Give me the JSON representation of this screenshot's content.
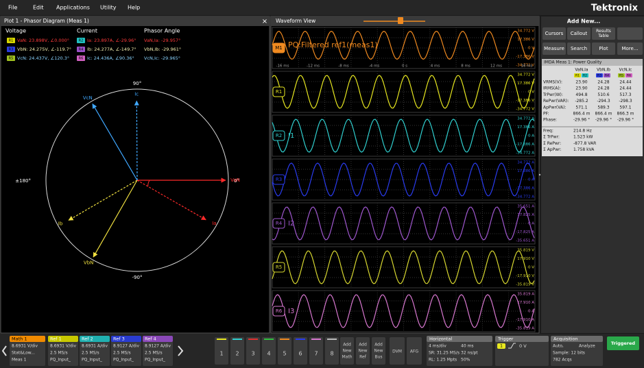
{
  "menu": {
    "items": [
      "File",
      "Edit",
      "Applications",
      "Utility",
      "Help"
    ],
    "brand": "Tektronix"
  },
  "phasor_panel": {
    "title": "Plot 1 - Phasor Diagram (Meas 1)",
    "close": "×",
    "columns": [
      "Voltage",
      "Current",
      "Phasor Angle"
    ],
    "rows": [
      {
        "color": "#ff3a3a",
        "voltage_badge": "R1",
        "voltage": "VaN: 23.898V, ∠0.000°",
        "current_badge": "R2",
        "current": "Ia: 23.897A, ∠-29.96°",
        "angle": "VaN,Ia: -29.957°"
      },
      {
        "color": "#f4f0b0",
        "voltage_badge": "R3",
        "voltage": "VbN: 24.275V, ∠-119.7°",
        "current_badge": "R4",
        "current": "Ib: 24.277A, ∠-149.7°",
        "angle": "VbN,Ib: -29.961°"
      },
      {
        "color": "#8ad4ff",
        "voltage_badge": "R5",
        "voltage": "VcN: 24.437V, ∠120.3°",
        "current_badge": "R6",
        "current": "Ic: 24.436A, ∠90.36°",
        "angle": "VcN,Ic: -29.965°"
      }
    ],
    "axis_labels": {
      "top": "90°",
      "bottom": "-90°",
      "left": "±180°",
      "right": "0°"
    },
    "phasors": [
      {
        "label": "VaN",
        "angle": 0,
        "color": "#ff2a2a",
        "dashed": false
      },
      {
        "label": "VbN",
        "angle": -119.7,
        "color": "#f0e040",
        "dashed": false
      },
      {
        "label": "VcN",
        "angle": 120.3,
        "color": "#40a8ff",
        "dashed": false
      },
      {
        "label": "Ia",
        "angle": -29.96,
        "color": "#ff2a2a",
        "dashed": true
      },
      {
        "label": "Ib",
        "angle": -149.7,
        "color": "#f0e040",
        "dashed": true
      },
      {
        "label": "Ic",
        "angle": 90.36,
        "color": "#40a8ff",
        "dashed": true
      }
    ]
  },
  "waveform_view": {
    "title": "Waveform View",
    "time_labels": [
      "-16 ms",
      "-12 ms",
      "-8 ms",
      "-4 ms",
      "0 s",
      "4 ms",
      "8 ms",
      "12 ms",
      "16 ms"
    ],
    "traces": [
      {
        "label": "M1",
        "color": "#f08a20",
        "annotation": "PQ:Filtered ref1(meas1)",
        "scale": [
          "34.772 V",
          "17.386 V",
          "0 V",
          "-17.386 V",
          "-34.772 V"
        ]
      },
      {
        "label": "R1",
        "color": "#e8e820",
        "scale": [
          "34.772 V",
          "17.386 V",
          "0 V",
          "-17.386 V",
          "-34.772 V"
        ]
      },
      {
        "label": "R2",
        "color": "#30d0d0",
        "annotation": "I1",
        "scale": [
          "34.772 A",
          "17.386 A",
          "0 A",
          "-17.386 A",
          "-34.772 A"
        ]
      },
      {
        "label": "R3",
        "color": "#2a3cf0",
        "scale": [
          "34.772 A",
          "17.386 A",
          "0 A",
          "-17.386 A",
          "-34.772 A"
        ]
      },
      {
        "label": "R4",
        "color": "#a058d0",
        "annotation": "I2",
        "scale": [
          "35.651 A",
          "17.825 A",
          "0 A",
          "-17.825 A",
          "-35.651 A"
        ]
      },
      {
        "label": "R5",
        "color": "#d8d830",
        "scale": [
          "35.819 V",
          "17.910 V",
          "0 V",
          "-17.910 V",
          "-35.819 V"
        ]
      },
      {
        "label": "R6",
        "color": "#d878d0",
        "annotation": "I3",
        "scale": [
          "35.819 A",
          "17.910 A",
          "0 A",
          "-17.910 A",
          "-35.819 A"
        ]
      }
    ]
  },
  "right_panel": {
    "add_new": "Add New...",
    "buttons": [
      [
        "Cursors"
      ],
      [
        "Callout"
      ],
      [
        "Results",
        "Table"
      ],
      [
        "Measure"
      ],
      [
        "Search"
      ],
      [
        "Plot"
      ],
      [
        "More..."
      ]
    ],
    "measurement_table": {
      "title": "IMDA Meas 1: Power Quality",
      "columns": [
        "VaN,Ia",
        "VbN,Ib",
        "VcN,Ic"
      ],
      "badges": [
        [
          "R1",
          "R2"
        ],
        [
          "R3",
          "R4"
        ],
        [
          "R5",
          "R6"
        ]
      ],
      "rows": [
        [
          "VRMS(V):",
          "23.90",
          "24.28",
          "24.44"
        ],
        [
          "IRMS(A):",
          "23.90",
          "24.28",
          "24.44"
        ],
        [
          "TrPwr(W):",
          "494.8",
          "510.6",
          "517.3"
        ],
        [
          "RePwr(VAR):",
          "-285.2",
          "-294.3",
          "-298.3"
        ],
        [
          "ApPwr(VA):",
          "571.1",
          "589.3",
          "597.1"
        ],
        [
          "PF:",
          "866.4 m",
          "866.4 m",
          "866.3 m"
        ],
        [
          "Phase:",
          "-29.96 °",
          "-29.96 °",
          "-29.96 °"
        ]
      ],
      "summary": [
        [
          "Freq:",
          "214.8 Hz"
        ],
        [
          "Σ TrPwr:",
          "1.523 kW"
        ],
        [
          "Σ RePwr:",
          "-877.8 VAR"
        ],
        [
          "Σ ApPwr:",
          "1.758 kVA"
        ]
      ]
    }
  },
  "bottom_bar": {
    "channels": [
      {
        "title": "Math 1",
        "color": "#f08a00",
        "lines": [
          "8.6931 V/div",
          "Stat&Low...",
          "Meas 1"
        ]
      },
      {
        "title": "Ref 1",
        "color": "#c8c800",
        "lines": [
          "8.6931 V/div",
          "2.5 MS/s",
          "PQ_Input_"
        ]
      },
      {
        "title": "Ref 2",
        "color": "#20b0b0",
        "lines": [
          "8.6931 A/div",
          "2.5 MS/s",
          "PQ_Input_"
        ]
      },
      {
        "title": "Ref 3",
        "color": "#2a3cd0",
        "lines": [
          "8.9127 A/div",
          "2.5 MS/s",
          "PQ_Input_"
        ]
      },
      {
        "title": "Ref 4",
        "color": "#8a48b8",
        "lines": [
          "8.9127 A/div",
          "2.5 MS/s",
          "PQ_Input_"
        ]
      }
    ],
    "buttons": [
      "1",
      "2",
      "3",
      "4",
      "5",
      "6",
      "7",
      "8"
    ],
    "add_new": [
      [
        "Add",
        "New",
        "Math"
      ],
      [
        "Add",
        "New",
        "Ref"
      ],
      [
        "Add",
        "New",
        "Bus"
      ]
    ],
    "tools": [
      "DVM",
      "AFG"
    ],
    "horizontal": {
      "title": "Horizontal",
      "rows": [
        [
          "4 ms/div",
          "40 ms"
        ],
        [
          "SR: 31.25 MS/s",
          "32 ns/pt"
        ],
        [
          "RL: 1.25 Mpts",
          "50%"
        ]
      ]
    },
    "trigger": {
      "title": "Trigger",
      "source": "1",
      "level": "0 V"
    },
    "acquisition": {
      "title": "Acquisition",
      "rows": [
        [
          "Auto,",
          "Analyze"
        ],
        [
          "Sample: 12 bits"
        ],
        [
          "782 Acqs"
        ]
      ]
    },
    "status": "Triggered"
  }
}
